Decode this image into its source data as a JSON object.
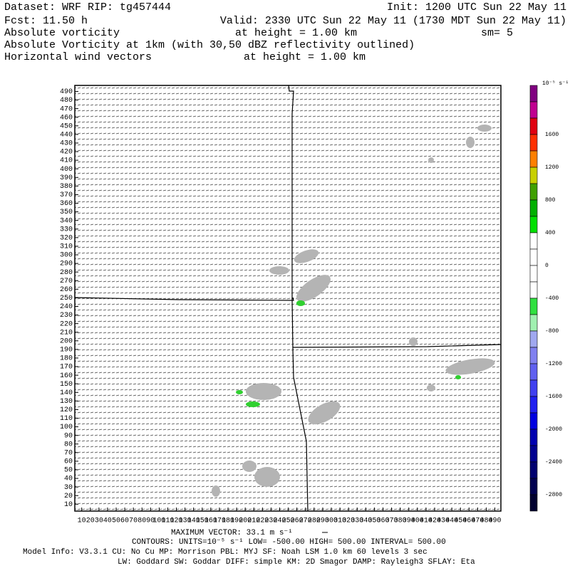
{
  "header": {
    "dataset": "Dataset: WRF  RIP: tg457444",
    "init": "Init: 1200 UTC Sun 22 May 11",
    "fcst": "Fcst:    11.50 h",
    "valid": "Valid: 2330 UTC Sun 22 May 11 (1730 MDT Sun 22 May 11)",
    "field1": "Absolute vorticity",
    "height1": "at height =  1.00 km",
    "smooth": "sm= 5",
    "field2": "Absolute Vorticity at 1km (with 30,50 dBZ reflectivity outlined)",
    "field3": "Horizontal wind vectors",
    "height3": "at height =  1.00 km"
  },
  "chart_data": {
    "type": "map",
    "xlim": [
      2,
      497
    ],
    "ylim": [
      2,
      497
    ],
    "xticks": [
      10,
      20,
      30,
      40,
      50,
      60,
      70,
      80,
      90,
      100,
      110,
      120,
      130,
      140,
      150,
      160,
      170,
      180,
      190,
      200,
      210,
      220,
      230,
      240,
      250,
      260,
      270,
      280,
      290,
      300,
      310,
      320,
      330,
      340,
      350,
      360,
      370,
      380,
      390,
      400,
      410,
      420,
      430,
      440,
      450,
      460,
      470,
      480,
      490
    ],
    "yticks": [
      10,
      20,
      30,
      40,
      50,
      60,
      70,
      80,
      90,
      100,
      110,
      120,
      130,
      140,
      150,
      160,
      170,
      180,
      190,
      200,
      210,
      220,
      230,
      240,
      250,
      260,
      270,
      280,
      290,
      300,
      310,
      320,
      330,
      340,
      350,
      360,
      370,
      380,
      390,
      400,
      410,
      420,
      430,
      440,
      450,
      460,
      470,
      480,
      490
    ],
    "colorbar": {
      "unit": "10⁻⁵ s⁻¹",
      "range": [
        -3000,
        2200
      ],
      "colors": [
        "#800080",
        "#c00090",
        "#e00010",
        "#ff3000",
        "#ff8000",
        "#c8d000",
        "#40a000",
        "#00b000",
        "#00e000",
        "#ffffff",
        "#ffffff",
        "#ffffff",
        "#ffffff",
        "#30e040",
        "#a0f0b0",
        "#a0a8f0",
        "#8080f0",
        "#6060f0",
        "#4040f0",
        "#2020f0",
        "#0000e0",
        "#0000b0",
        "#000090",
        "#000070",
        "#000050",
        "#000030"
      ],
      "ticks": [
        1600,
        1200,
        800,
        400,
        0,
        -400,
        -800,
        -1200,
        -1600,
        -2000,
        -2400,
        -2800
      ]
    }
  },
  "footer": {
    "max_vector": "MAXIMUM VECTOR:  33.1 m s⁻¹",
    "contours": "CONTOURS:  UNITS=10⁻⁵ s⁻¹   LOW= -500.00       HIGH=   500.00       INTERVAL=    500.00",
    "model": "Model Info: V3.3.1    CU: No Cu    MP: Morrison    PBL: MYJ     SF: Noah LSM    1.0 km   60 levels    3 sec",
    "physics": "LW: Goddard SW: Goddar DIFF: simple KM: 2D Smagor DAMP: Rayleigh3  SFLAY: Eta"
  }
}
